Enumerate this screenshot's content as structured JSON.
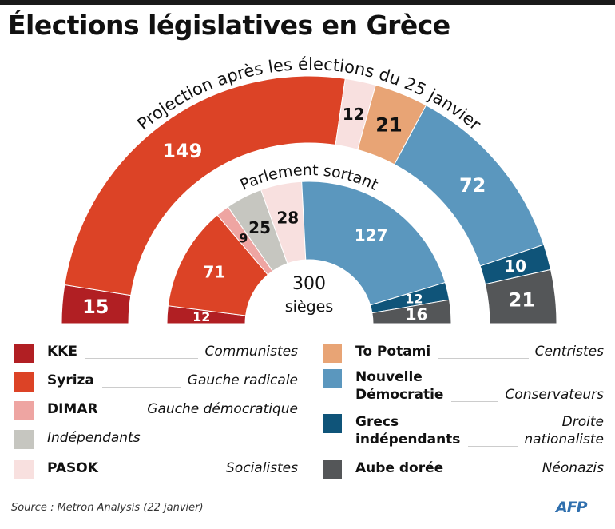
{
  "title": "Élections législatives en Grèce",
  "chart_data": {
    "type": "pie",
    "subtype": "parliament-semicircle",
    "title": "Élections législatives en Grèce",
    "total_seats": 300,
    "center_label": [
      "300",
      "sièges"
    ],
    "rings": [
      {
        "name": "Projection après les élections du 25 janvier",
        "segments": [
          {
            "party": "KKE",
            "seats": 15
          },
          {
            "party": "Syriza",
            "seats": 149
          },
          {
            "party": "PASOK",
            "seats": 12
          },
          {
            "party": "To Potami",
            "seats": 21
          },
          {
            "party": "Nouvelle Démocratie",
            "seats": 72
          },
          {
            "party": "Grecs indépendants",
            "seats": 10
          },
          {
            "party": "Aube dorée",
            "seats": 21
          }
        ]
      },
      {
        "name": "Parlement sortant",
        "segments": [
          {
            "party": "KKE",
            "seats": 12
          },
          {
            "party": "Syriza",
            "seats": 71
          },
          {
            "party": "DIMAR",
            "seats": 9
          },
          {
            "party": "Indépendants",
            "seats": 25
          },
          {
            "party": "PASOK",
            "seats": 28
          },
          {
            "party": "Nouvelle Démocratie",
            "seats": 127
          },
          {
            "party": "Grecs indépendants",
            "seats": 12
          },
          {
            "party": "Aube dorée",
            "seats": 16
          }
        ]
      }
    ],
    "parties": {
      "KKE": {
        "color": "#b11f23",
        "label_color": "#ffffff",
        "description": "Communistes"
      },
      "Syriza": {
        "color": "#dc4326",
        "label_color": "#ffffff",
        "description": "Gauche radicale"
      },
      "DIMAR": {
        "color": "#eea5a2",
        "label_color": "#111111",
        "description": "Gauche démocratique"
      },
      "Indépendants": {
        "color": "#c6c6c0",
        "label_color": "#111111",
        "description": ""
      },
      "PASOK": {
        "color": "#f8e0df",
        "label_color": "#111111",
        "description": "Socialistes"
      },
      "To Potami": {
        "color": "#e8a475",
        "label_color": "#111111",
        "description": "Centristes"
      },
      "Nouvelle Démocratie": {
        "color": "#5b97be",
        "label_color": "#ffffff",
        "description": "Conservateurs"
      },
      "Grecs indépendants": {
        "color": "#0f5479",
        "label_color": "#ffffff",
        "description": "Droite nationaliste"
      },
      "Aube dorée": {
        "color": "#545658",
        "label_color": "#ffffff",
        "description": "Néonazis"
      }
    }
  },
  "legend": {
    "left": [
      {
        "name": "KKE",
        "desc": "Communistes",
        "color": "#b11f23"
      },
      {
        "name": "Syriza",
        "desc": "Gauche radicale",
        "color": "#dc4326"
      },
      {
        "name": "DIMAR",
        "desc": "Gauche démocratique",
        "color": "#eea5a2"
      },
      {
        "name": "Indépendants",
        "desc": "",
        "color": "#c6c6c0"
      },
      {
        "name": "PASOK",
        "desc": "Socialistes",
        "color": "#f8e0df"
      }
    ],
    "right": [
      {
        "name": "To Potami",
        "desc": "Centristes",
        "color": "#e8a475"
      },
      {
        "name": "Nouvelle Démocratie",
        "name_lines": [
          "Nouvelle",
          "Démocratie"
        ],
        "desc": "Conservateurs",
        "color": "#5b97be"
      },
      {
        "name": "Grecs indépendants",
        "name_lines": [
          "Grecs",
          "indépendants"
        ],
        "desc": "Droite nationaliste",
        "desc_lines": [
          "Droite",
          "nationaliste"
        ],
        "color": "#0f5479"
      },
      {
        "name": "Aube dorée",
        "desc": "Néonazis",
        "color": "#545658"
      }
    ]
  },
  "source": "Source : Metron Analysis (22 janvier)",
  "logo": "AFP"
}
